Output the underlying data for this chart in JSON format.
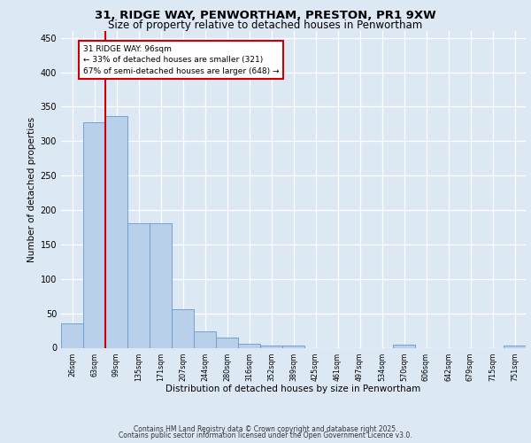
{
  "title_line1": "31, RIDGE WAY, PENWORTHAM, PRESTON, PR1 9XW",
  "title_line2": "Size of property relative to detached houses in Penwortham",
  "xlabel": "Distribution of detached houses by size in Penwortham",
  "ylabel": "Number of detached properties",
  "categories": [
    "26sqm",
    "63sqm",
    "99sqm",
    "135sqm",
    "171sqm",
    "207sqm",
    "244sqm",
    "280sqm",
    "316sqm",
    "352sqm",
    "389sqm",
    "425sqm",
    "461sqm",
    "497sqm",
    "534sqm",
    "570sqm",
    "606sqm",
    "642sqm",
    "679sqm",
    "715sqm",
    "751sqm"
  ],
  "values": [
    35,
    328,
    337,
    181,
    181,
    56,
    24,
    15,
    6,
    3,
    3,
    0,
    0,
    0,
    0,
    5,
    0,
    0,
    0,
    0,
    3
  ],
  "bar_color": "#b8d0ea",
  "bar_edge_color": "#6699cc",
  "vline_index": 1.5,
  "vline_color": "#cc0000",
  "annotation_text": "31 RIDGE WAY: 96sqm\n← 33% of detached houses are smaller (321)\n67% of semi-detached houses are larger (648) →",
  "annotation_box_color": "#ffffff",
  "annotation_box_edge": "#cc0000",
  "bg_color": "#dde8f5",
  "plot_bg_color": "#dde8f5",
  "grid_color": "#ffffff",
  "footer_line1": "Contains HM Land Registry data © Crown copyright and database right 2025.",
  "footer_line2": "Contains public sector information licensed under the Open Government Licence v3.0.",
  "ylim": [
    0,
    460
  ],
  "yticks": [
    0,
    50,
    100,
    150,
    200,
    250,
    300,
    350,
    400,
    450
  ]
}
